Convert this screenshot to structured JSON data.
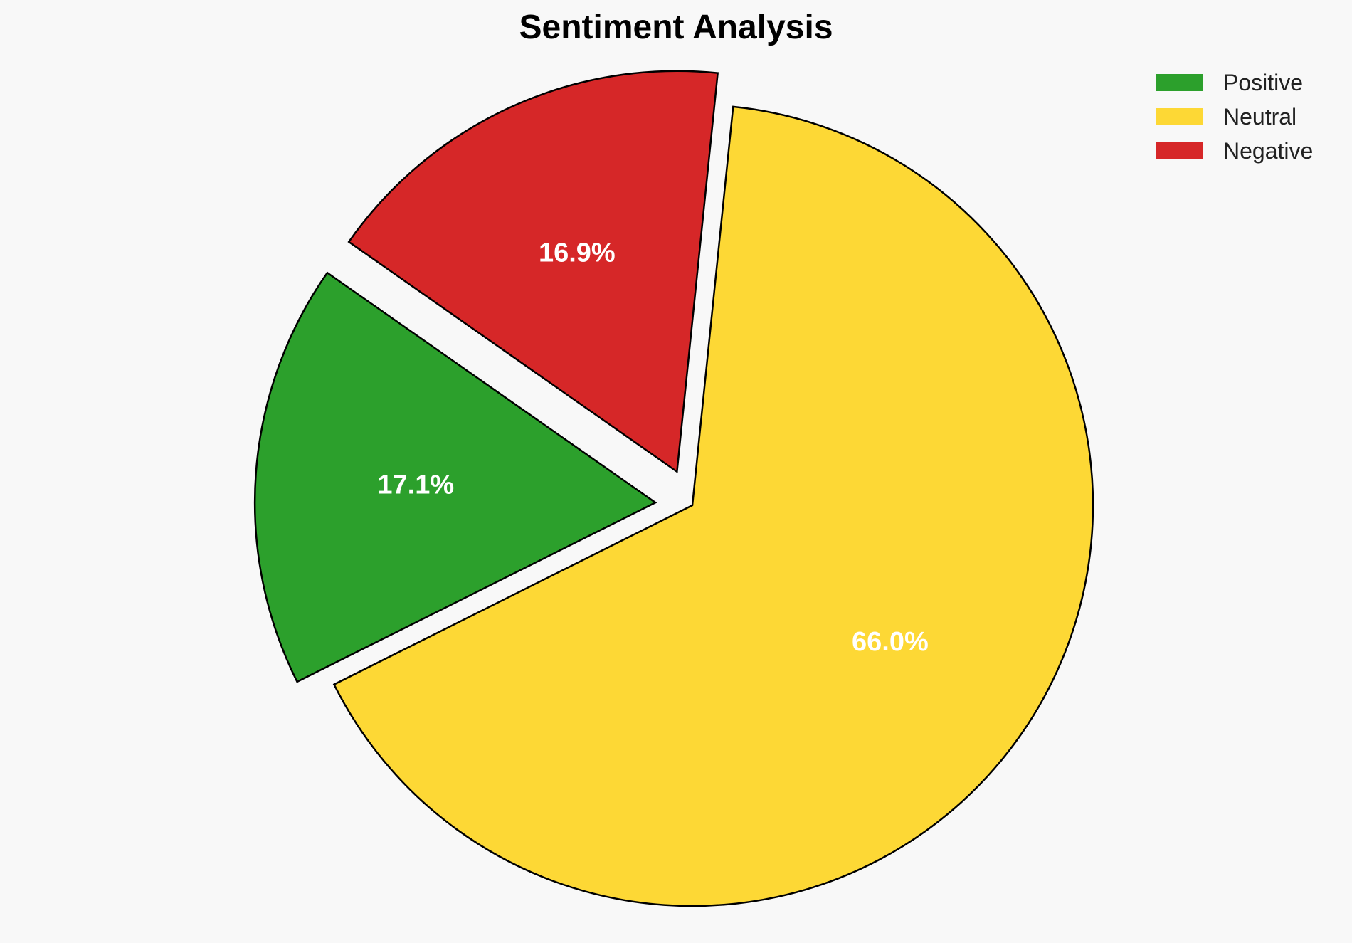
{
  "chart_data": {
    "type": "pie",
    "title": "Sentiment Analysis",
    "categories": [
      "Positive",
      "Neutral",
      "Negative"
    ],
    "values": [
      17.1,
      66.0,
      16.9
    ],
    "labels": [
      "17.1%",
      "66.0%",
      "16.9%"
    ],
    "colors": [
      "#2ca02c",
      "#fdd835",
      "#d62728"
    ],
    "exploded": [
      true,
      false,
      true
    ],
    "edge_color": "#000000",
    "legend_position": "top-right"
  }
}
